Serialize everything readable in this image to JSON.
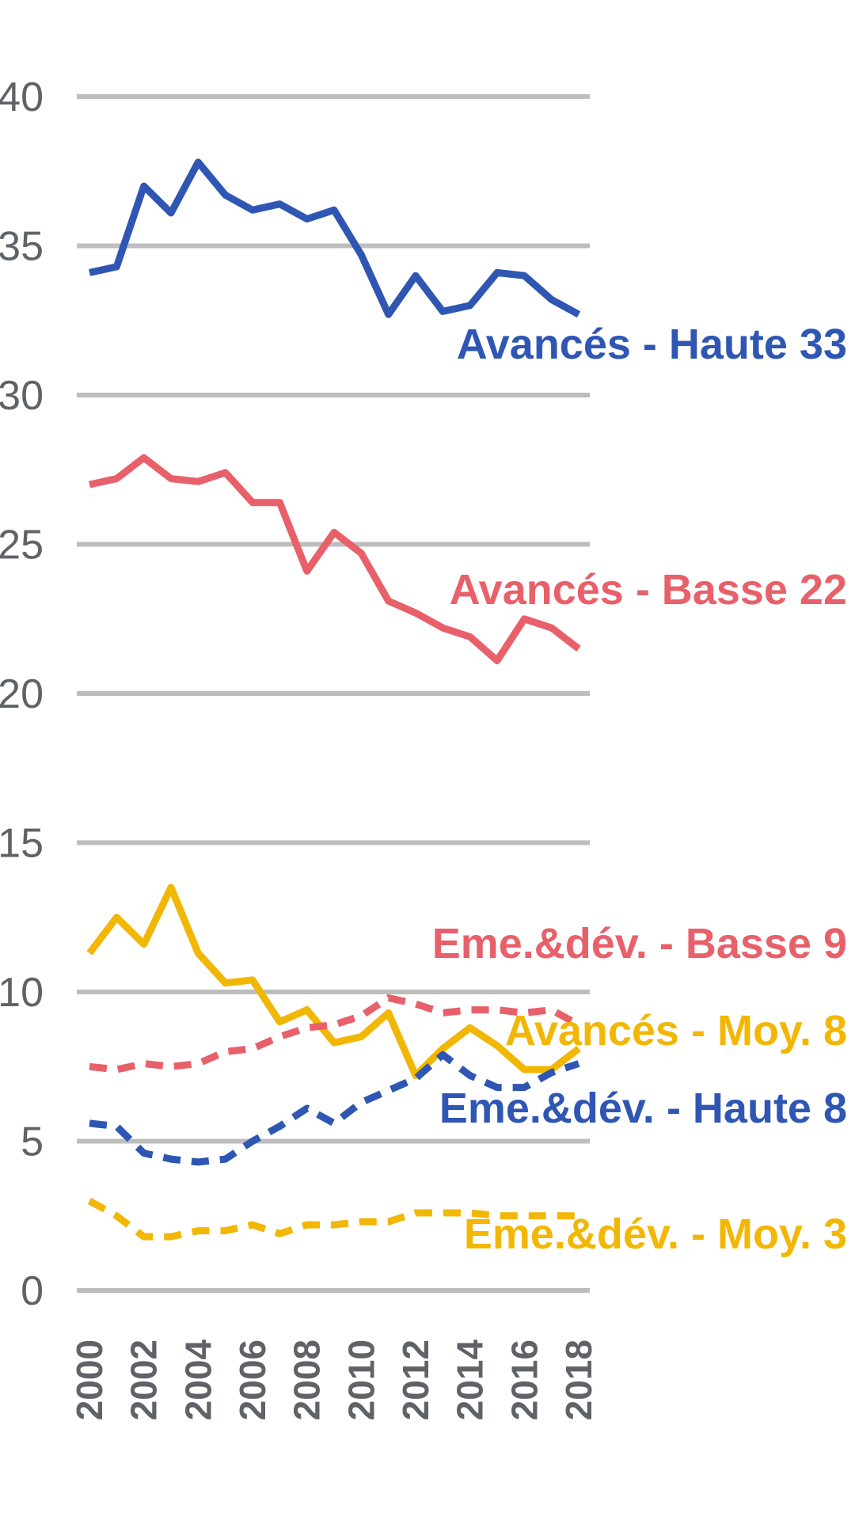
{
  "chart_data": {
    "type": "line",
    "title": "",
    "xlabel": "",
    "ylabel": "",
    "ylim": [
      0,
      40
    ],
    "yticks": [
      0,
      5,
      10,
      15,
      20,
      25,
      30,
      35,
      40
    ],
    "xticks": [
      2000,
      2002,
      2004,
      2006,
      2008,
      2010,
      2012,
      2014,
      2016,
      2018
    ],
    "grid": true,
    "x": [
      2000,
      2001,
      2002,
      2003,
      2004,
      2005,
      2006,
      2007,
      2008,
      2009,
      2010,
      2011,
      2012,
      2013,
      2014,
      2015,
      2016,
      2017,
      2018
    ],
    "series": [
      {
        "name": "Avancés - Haute",
        "label": "Avancés - Haute 33",
        "color": "#2f56b3",
        "dashed": false,
        "values": [
          34.1,
          34.3,
          37.0,
          36.1,
          37.8,
          36.7,
          36.2,
          36.4,
          35.9,
          36.2,
          34.7,
          32.7,
          34.0,
          32.8,
          33.0,
          34.1,
          34.0,
          33.2,
          32.7
        ]
      },
      {
        "name": "Avancés - Basse",
        "label": "Avancés - Basse 22",
        "color": "#e8606a",
        "dashed": false,
        "values": [
          27.0,
          27.2,
          27.9,
          27.2,
          27.1,
          27.4,
          26.4,
          26.4,
          24.1,
          25.4,
          24.7,
          23.1,
          22.7,
          22.2,
          21.9,
          21.1,
          22.5,
          22.2,
          21.5
        ]
      },
      {
        "name": "Avancés - Moy.",
        "label": "Avancés - Moy. 8",
        "color": "#f2b705",
        "dashed": false,
        "values": [
          11.3,
          12.5,
          11.6,
          13.5,
          11.3,
          10.3,
          10.4,
          9.0,
          9.4,
          8.3,
          8.5,
          9.3,
          7.2,
          8.1,
          8.8,
          8.2,
          7.4,
          7.4,
          8.1
        ]
      },
      {
        "name": "Eme.&dév. - Basse",
        "label": "Eme.&dév. - Basse 9",
        "color": "#e8606a",
        "dashed": true,
        "values": [
          7.5,
          7.4,
          7.6,
          7.5,
          7.6,
          8.0,
          8.1,
          8.5,
          8.8,
          8.9,
          9.2,
          9.8,
          9.6,
          9.3,
          9.4,
          9.4,
          9.3,
          9.4,
          8.9
        ]
      },
      {
        "name": "Eme.&dév. - Haute",
        "label": "Eme.&dév. - Haute 8",
        "color": "#2f56b3",
        "dashed": true,
        "values": [
          5.6,
          5.5,
          4.6,
          4.4,
          4.3,
          4.4,
          5.0,
          5.5,
          6.1,
          5.6,
          6.3,
          6.7,
          7.1,
          7.9,
          7.2,
          6.8,
          6.8,
          7.3,
          7.6
        ]
      },
      {
        "name": "Eme.&dév. - Moy.",
        "label": "Eme.&dév. - Moy. 3",
        "color": "#f2b705",
        "dashed": true,
        "values": [
          3.0,
          2.5,
          1.8,
          1.8,
          2.0,
          2.0,
          2.2,
          1.9,
          2.2,
          2.2,
          2.3,
          2.3,
          2.6,
          2.6,
          2.6,
          2.5,
          2.5,
          2.5,
          2.5
        ]
      }
    ]
  }
}
